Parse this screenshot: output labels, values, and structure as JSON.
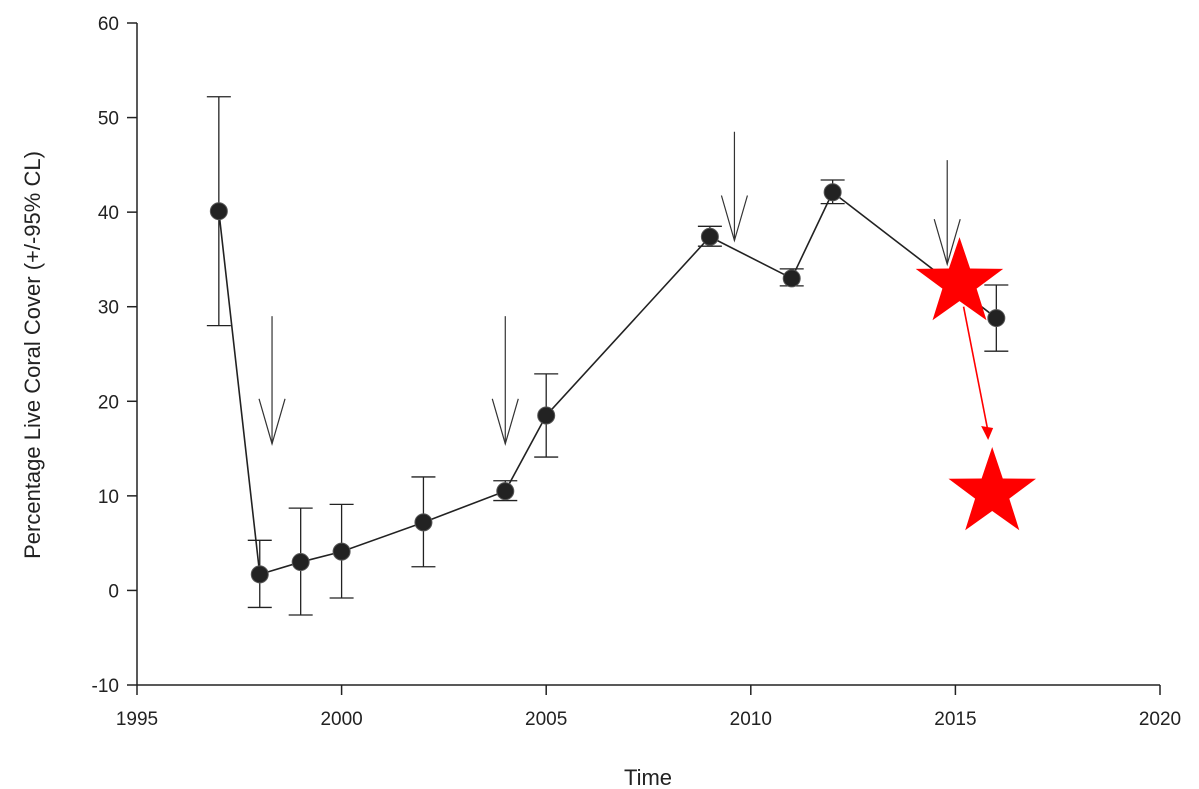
{
  "chart_data": {
    "type": "line",
    "title": "",
    "xlabel": "Time",
    "ylabel": "Percentage Live Coral Cover (+/-95% CL)",
    "xlim": [
      1995,
      2020
    ],
    "ylim": [
      -10,
      60
    ],
    "xticks": [
      1995,
      2000,
      2005,
      2010,
      2015,
      2020
    ],
    "yticks": [
      -10,
      0,
      10,
      20,
      30,
      40,
      50,
      60
    ],
    "grid": false,
    "legend": "none",
    "series": [
      {
        "x": [
          1997,
          1998,
          1999,
          2000,
          2002,
          2004,
          2005,
          2009,
          2011,
          2012,
          2016
        ],
        "y": [
          40.1,
          1.7,
          3.0,
          4.1,
          7.2,
          10.5,
          18.5,
          37.4,
          33.0,
          42.1,
          28.8
        ],
        "lower": [
          28.0,
          -1.8,
          -2.6,
          -0.8,
          2.5,
          9.5,
          14.1,
          36.4,
          32.2,
          40.9,
          25.3
        ],
        "upper": [
          52.2,
          5.3,
          8.7,
          9.1,
          12.0,
          11.6,
          22.9,
          38.5,
          34.0,
          43.4,
          32.3
        ],
        "color": "#222222"
      }
    ],
    "annotations": {
      "arrows": [
        {
          "x": 1998.3,
          "y_from": 29.0,
          "y_to": 15.5
        },
        {
          "x": 2004.0,
          "y_from": 29.0,
          "y_to": 15.5
        },
        {
          "x": 2009.6,
          "y_from": 48.5,
          "y_to": 37.0
        },
        {
          "x": 2014.8,
          "y_from": 45.5,
          "y_to": 34.5
        }
      ],
      "stars": [
        {
          "x": 2015.1,
          "y": 32.5,
          "color": "#ff0000"
        },
        {
          "x": 2015.9,
          "y": 10.3,
          "color": "#ff0000"
        }
      ],
      "red_arrow": {
        "x_from": 2015.2,
        "y_from": 30.0,
        "x_to": 2015.8,
        "y_to": 15.9,
        "color": "#ff0000"
      }
    }
  }
}
